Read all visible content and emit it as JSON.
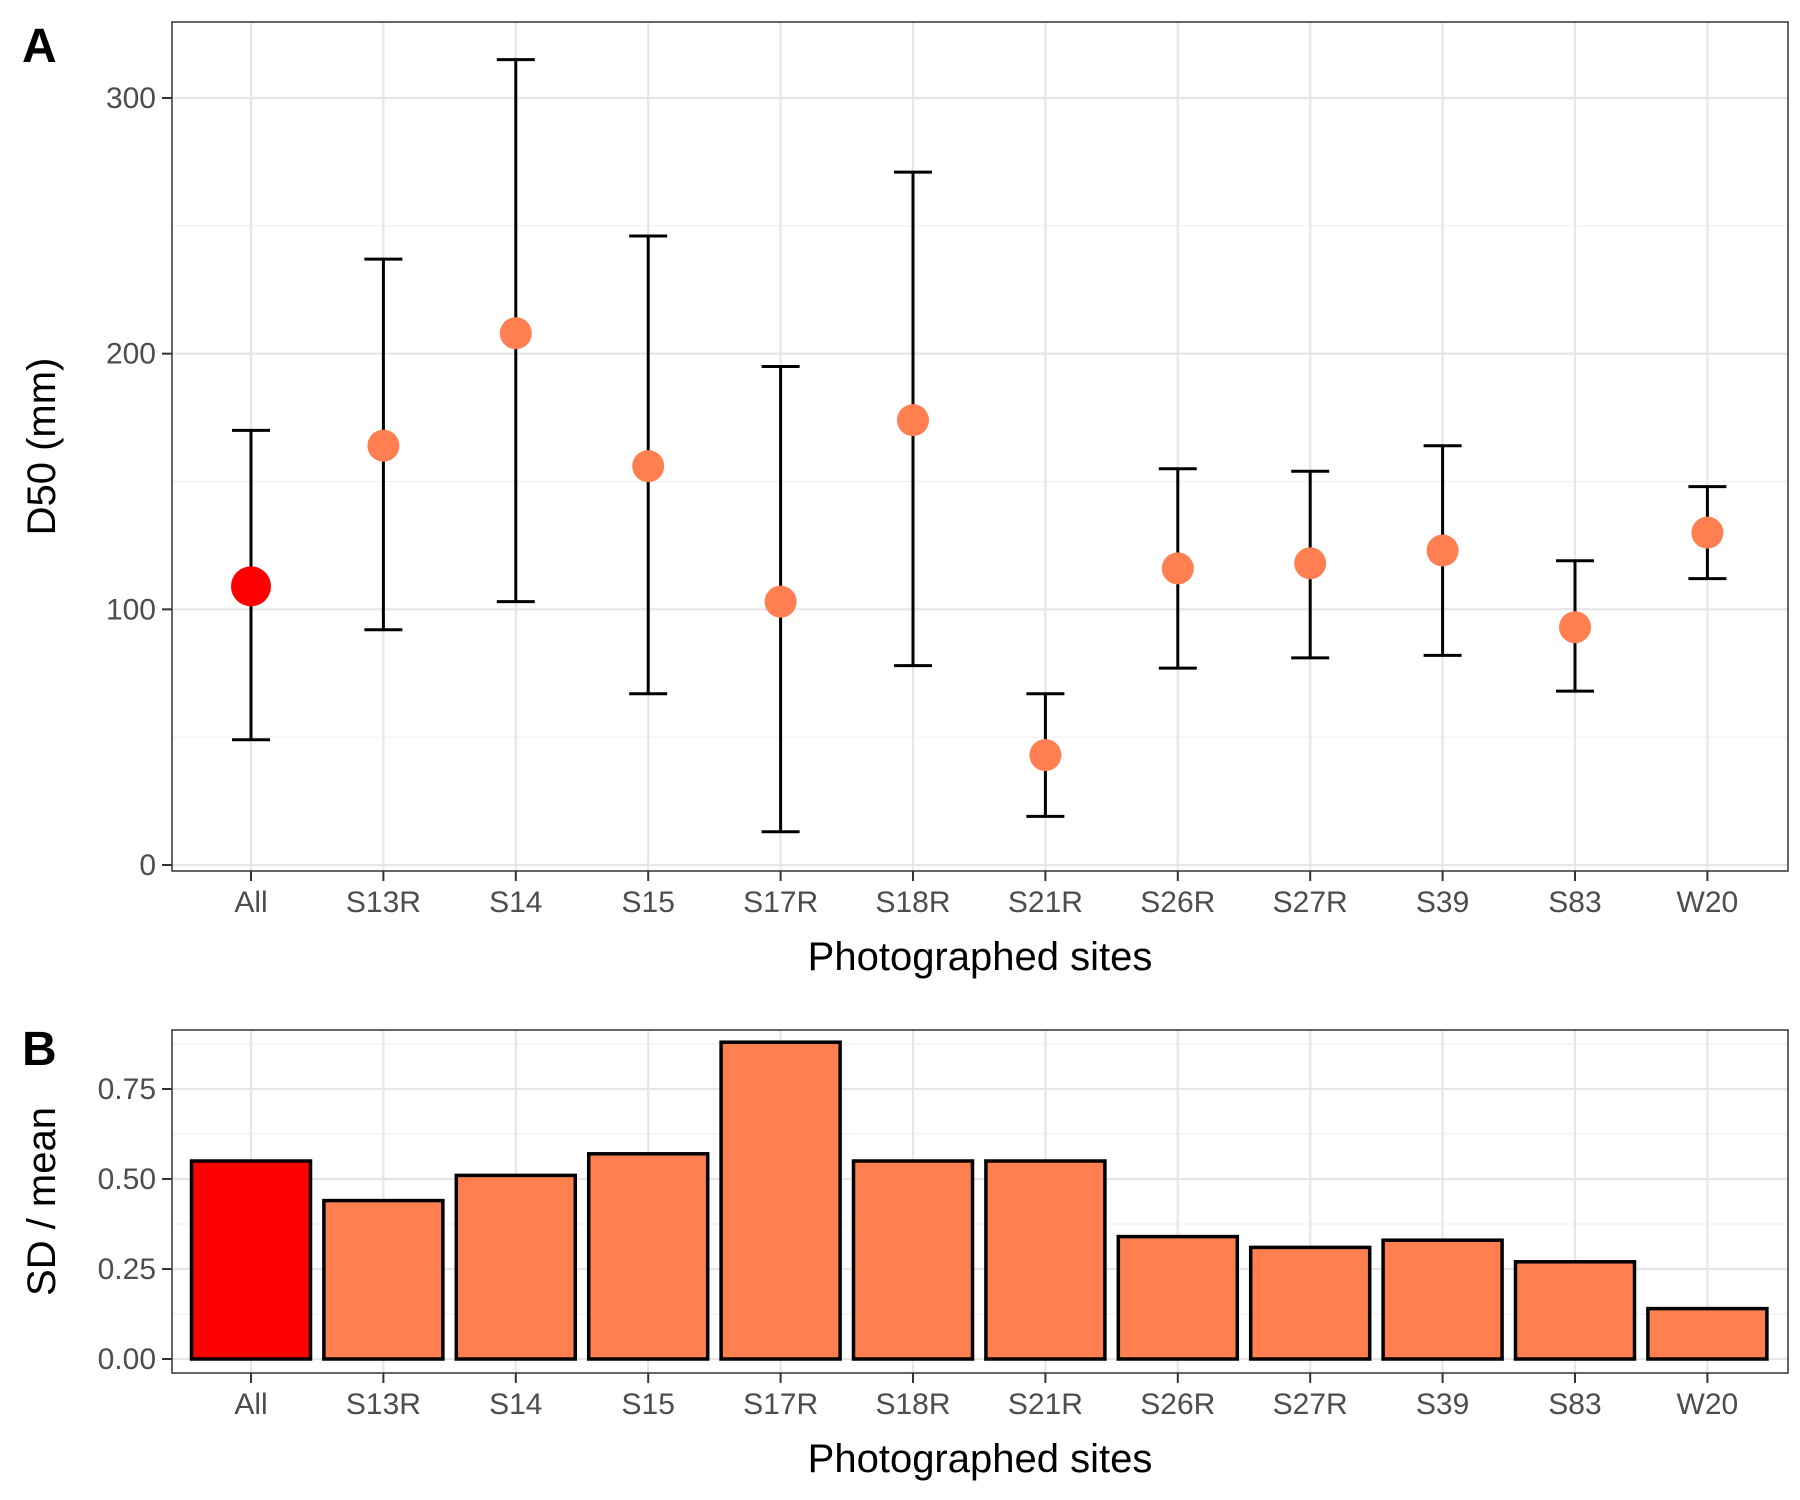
{
  "figure": {
    "panels": [
      "A",
      "B"
    ]
  },
  "chart_data": [
    {
      "panel": "A",
      "type": "scatter",
      "subtype": "point-with-error-bars",
      "title": "",
      "xlabel": "Photographed sites",
      "ylabel": "D50 (mm)",
      "categories": [
        "All",
        "S13R",
        "S14",
        "S15",
        "S17R",
        "S18R",
        "S21R",
        "S26R",
        "S27R",
        "S39",
        "S83",
        "W20"
      ],
      "values": [
        109,
        164,
        208,
        156,
        103,
        174,
        43,
        116,
        118,
        123,
        93,
        130
      ],
      "error_low": [
        49,
        92,
        103,
        67,
        13,
        78,
        19,
        77,
        81,
        82,
        68,
        112
      ],
      "error_high": [
        170,
        237,
        315,
        246,
        195,
        271,
        67,
        155,
        154,
        164,
        119,
        148
      ],
      "highlight_index": 0,
      "colors": {
        "highlight": "#ff0000",
        "default": "#ff7f50",
        "error_bar": "#000000"
      },
      "ylim": [
        0,
        300
      ],
      "yticks": [
        0,
        100,
        200,
        300
      ],
      "ytick_labels": [
        "0",
        "100",
        "200",
        "300"
      ],
      "grid": true,
      "legend": "none"
    },
    {
      "panel": "B",
      "type": "bar",
      "title": "",
      "xlabel": "Photographed sites",
      "ylabel": "SD / mean",
      "categories": [
        "All",
        "S13R",
        "S14",
        "S15",
        "S17R",
        "S18R",
        "S21R",
        "S26R",
        "S27R",
        "S39",
        "S83",
        "W20"
      ],
      "values": [
        0.55,
        0.44,
        0.51,
        0.57,
        0.88,
        0.55,
        0.55,
        0.34,
        0.31,
        0.33,
        0.27,
        0.14
      ],
      "highlight_index": 0,
      "colors": {
        "highlight": "#ff0000",
        "default": "#ff7f50",
        "outline": "#000000"
      },
      "ylim": [
        0,
        0.88
      ],
      "yticks": [
        0,
        0.25,
        0.5,
        0.75
      ],
      "ytick_labels": [
        "0.00",
        "0.25",
        "0.50",
        "0.75"
      ],
      "grid": true,
      "legend": "none"
    }
  ]
}
